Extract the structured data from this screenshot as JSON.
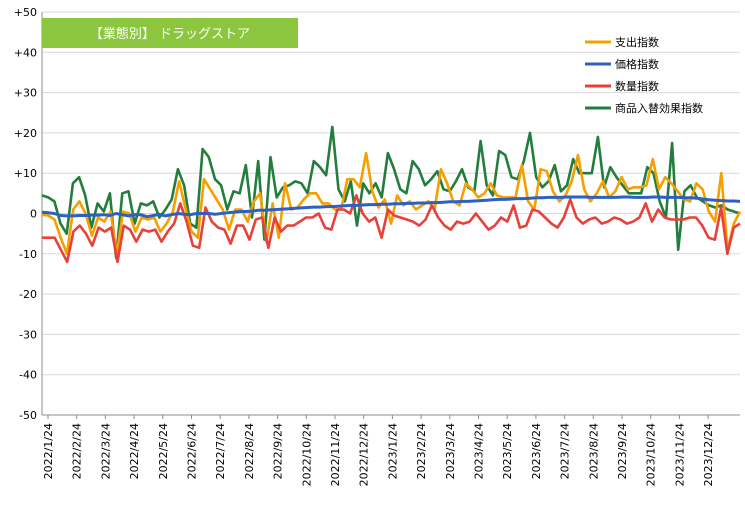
{
  "chart_data": {
    "type": "line",
    "title": "【業態別】 ドラッグストア",
    "title_bg_color": "#8cc63f",
    "xlabel": "",
    "ylabel": "",
    "ylim": [
      -50,
      50
    ],
    "y_ticks": [
      50,
      40,
      30,
      20,
      10,
      0,
      -10,
      -20,
      -30,
      -40,
      -50
    ],
    "y_tick_labels": [
      "+50",
      "+40",
      "+30",
      "+20",
      "+10",
      "0",
      "-10",
      "-20",
      "-30",
      "-40",
      "-50"
    ],
    "grid": "horizontal",
    "legend_position": "top-right",
    "x_tick_labels": [
      "2022/1/24",
      "2022/2/24",
      "2022/3/24",
      "2022/4/24",
      "2022/5/24",
      "2022/6/24",
      "2022/7/24",
      "2022/8/24",
      "2022/9/24",
      "2022/10/24",
      "2022/11/24",
      "2022/12/24",
      "2023/1/24",
      "2023/2/24",
      "2023/3/24",
      "2023/4/24",
      "2023/5/24",
      "2023/6/24",
      "2023/7/24",
      "2023/8/24",
      "2023/9/24",
      "2023/10/24",
      "2023/11/24",
      "2023/12/24"
    ],
    "series": [
      {
        "name": "支出指数",
        "color": "#f5a000",
        "values": [
          -0.3,
          -0.5,
          -1.5,
          -6,
          -10,
          1,
          3,
          0,
          -5.5,
          -1,
          -2,
          0.5,
          -10,
          0.5,
          0,
          -4.5,
          -1,
          -1.5,
          -1,
          -4.5,
          -2.5,
          0.5,
          8,
          1.5,
          -4.5,
          -6,
          8.5,
          6,
          3.5,
          1,
          -4,
          1,
          1,
          -2,
          3,
          5,
          -7,
          2.5,
          -6,
          7.5,
          1,
          1.5,
          3.5,
          5,
          5,
          2.5,
          2.5,
          1,
          1,
          8.5,
          8.5,
          6.5,
          15,
          5.5,
          1.5,
          3.5,
          -2.5,
          4.5,
          2,
          3,
          1,
          2,
          3,
          1,
          11,
          7.5,
          3,
          2,
          7.5,
          6,
          4,
          5,
          7.5,
          4.5,
          4,
          4,
          4,
          12,
          3,
          1,
          11,
          10.5,
          5.5,
          3,
          4.5,
          8,
          14.5,
          6,
          3,
          5,
          8,
          4,
          5.5,
          9,
          6,
          6.5,
          6.5,
          7,
          13.5,
          6,
          9,
          7.5,
          5.5,
          3.5,
          3,
          7.5,
          6,
          0.5,
          -2,
          10,
          -9,
          -2.5,
          0.5
        ]
      },
      {
        "name": "価格指数",
        "color": "#2e5fc1",
        "values": [
          0.3,
          0.2,
          0,
          -0.5,
          -0.6,
          -0.6,
          -0.5,
          -0.5,
          -0.4,
          -0.4,
          -0.3,
          -0.5,
          0,
          -0.3,
          -0.6,
          -0.3,
          -0.3,
          -0.8,
          -0.5,
          -0.2,
          -0.6,
          -0.3,
          0,
          -0.2,
          -0.3,
          0,
          0,
          0,
          -0.2,
          0,
          0.2,
          0.3,
          0.5,
          0.5,
          0.6,
          0.8,
          0.8,
          0.9,
          1,
          1.1,
          1.2,
          1.3,
          1.4,
          1.5,
          1.6,
          1.6,
          1.7,
          1.7,
          1.8,
          1.9,
          2,
          2,
          2.1,
          2.2,
          2.2,
          2.3,
          2.3,
          2.4,
          2.4,
          2.5,
          2.5,
          2.6,
          2.6,
          2.7,
          2.7,
          2.8,
          2.9,
          2.9,
          3,
          3,
          3.1,
          3.2,
          3.3,
          3.4,
          3.5,
          3.5,
          3.6,
          3.7,
          3.7,
          3.8,
          3.9,
          3.9,
          4,
          4,
          4,
          4.1,
          4.1,
          4.1,
          4.1,
          4,
          4,
          4,
          4,
          4,
          4.1,
          4.1,
          4,
          4,
          4,
          4.1,
          4.1,
          4,
          4,
          4,
          3.9,
          3.9,
          3.8,
          3.6,
          3.4,
          3.3,
          3.2,
          3.1,
          3.1,
          3
        ]
      },
      {
        "name": "数量指数",
        "color": "#e8413a",
        "values": [
          -6,
          -6,
          -6,
          -9,
          -12,
          -4.5,
          -3,
          -5,
          -8,
          -3.5,
          -4.5,
          -3.5,
          -12,
          -3,
          -4,
          -7,
          -4,
          -4.5,
          -4,
          -7,
          -4.5,
          -2.5,
          2.5,
          -2,
          -8,
          -8.5,
          1.5,
          -2,
          -3.5,
          -4,
          -7.5,
          -3,
          -3,
          -6.5,
          -1.5,
          -1,
          -8.5,
          -1,
          -4.5,
          -3,
          -3,
          -2,
          -1,
          -1,
          0,
          -3.5,
          -4,
          1,
          1,
          0,
          4.5,
          0,
          -2,
          -1,
          -6,
          1,
          -0.5,
          -1,
          -1.5,
          -2,
          -3,
          -1.5,
          2,
          -1,
          -3,
          -4,
          -2,
          -2.5,
          -2,
          0,
          -2,
          -4,
          -3,
          -1,
          -2,
          2,
          -3.5,
          -3,
          1,
          0.5,
          -1,
          -2.5,
          -3.5,
          -1,
          3.5,
          -1,
          -2.5,
          -1.5,
          -1,
          -2.5,
          -2,
          -1,
          -1.5,
          -2.5,
          -2,
          -1,
          2.5,
          -2,
          1,
          -1,
          -1.5,
          -1.5,
          -1.5,
          -1,
          -1,
          -3,
          -6,
          -6.5,
          1.5,
          -10,
          -3.5,
          -2.5
        ]
      },
      {
        "name": "商品入替効果指数",
        "color": "#237d3c",
        "values": [
          4.5,
          4,
          3,
          -2.5,
          -5,
          7.5,
          9,
          4.5,
          -3.5,
          2.5,
          0.5,
          5,
          -11,
          5,
          5.5,
          -2.5,
          2.5,
          2,
          3,
          -1,
          1,
          3.5,
          11,
          7,
          -2.5,
          -3.5,
          16,
          14,
          8.5,
          7,
          1,
          5.5,
          5,
          12,
          -1,
          13,
          -6.5,
          14,
          4,
          6.5,
          7,
          8,
          7.5,
          5,
          13,
          11.5,
          9.5,
          21.5,
          6,
          3,
          8,
          -3,
          7.5,
          5,
          7.5,
          4,
          15,
          11,
          6,
          5,
          13,
          11,
          7,
          8.5,
          10.5,
          6,
          5.5,
          8,
          11,
          6.5,
          5.5,
          18,
          7,
          4.5,
          15.5,
          14.5,
          9,
          8.5,
          13,
          20,
          9,
          6.5,
          8,
          12,
          5.5,
          7,
          13.5,
          10,
          10,
          10,
          19,
          6.5,
          11.5,
          9,
          7,
          5,
          5,
          5,
          11.5,
          10,
          3,
          -1,
          17.5,
          -9,
          5.5,
          7,
          4,
          3,
          2,
          1.5,
          2,
          1,
          0.5,
          0
        ]
      }
    ]
  }
}
